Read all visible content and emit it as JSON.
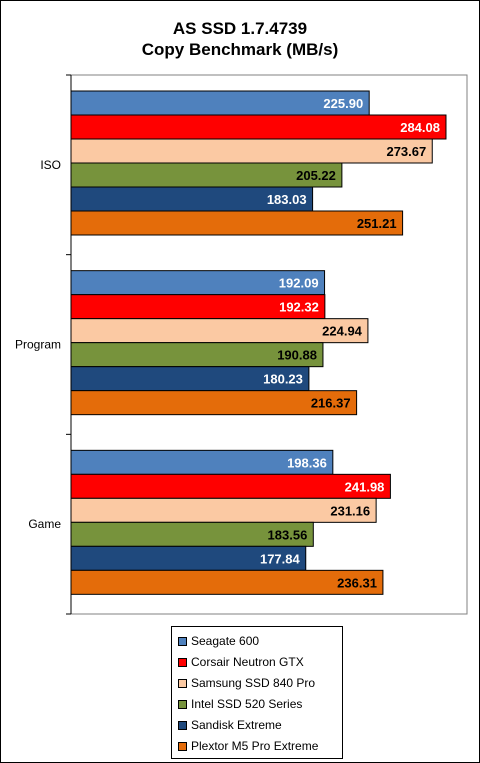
{
  "chart_data": {
    "type": "bar",
    "orientation": "horizontal",
    "title": "AS SSD 1.7.4739",
    "subtitle": "Copy Benchmark (MB/s)",
    "categories": [
      "ISO",
      "Program",
      "Game"
    ],
    "series": [
      {
        "name": "Seagate 600",
        "color": "#4f81bd",
        "label_color": "#ffffff",
        "values": [
          225.9,
          192.09,
          198.36
        ]
      },
      {
        "name": "Corsair Neutron GTX",
        "color": "#ff0000",
        "label_color": "#ffffff",
        "values": [
          284.08,
          192.32,
          241.98
        ]
      },
      {
        "name": "Samsung SSD 840 Pro",
        "color": "#fbc9a3",
        "label_color": "#000000",
        "values": [
          273.67,
          224.94,
          231.16
        ]
      },
      {
        "name": "Intel SSD 520 Series",
        "color": "#77933c",
        "label_color": "#000000",
        "values": [
          205.22,
          190.88,
          183.56
        ]
      },
      {
        "name": "Sandisk Extreme",
        "color": "#1f497d",
        "label_color": "#ffffff",
        "values": [
          183.03,
          180.23,
          177.84
        ]
      },
      {
        "name": "Plextor M5 Pro Extreme",
        "color": "#e46c0a",
        "label_color": "#000000",
        "values": [
          251.21,
          216.37,
          236.31
        ]
      }
    ],
    "xlim": [
      0,
      300
    ],
    "grid": false,
    "legend_position": "bottom",
    "plot_background": "#ffffff"
  }
}
